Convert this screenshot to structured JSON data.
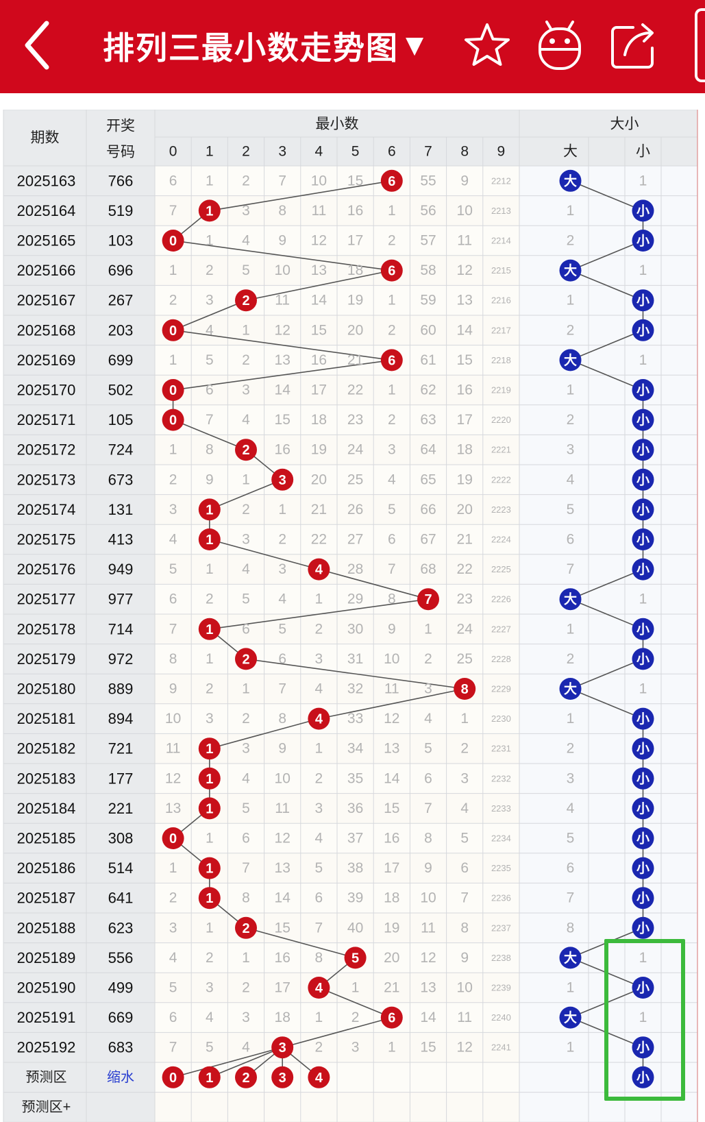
{
  "header": {
    "title": "排列三最小数走势图",
    "dropdown_icon": "triangle-down-icon",
    "back_icon": "chevron-left-icon",
    "star_icon": "star-icon",
    "robot_icon": "robot-icon",
    "share_icon": "share-icon"
  },
  "colors": {
    "brand_red": "#d0081c",
    "ball_red": "#c8101a",
    "ball_blue": "#1a27b0",
    "highlight_green": "#3cba3c"
  },
  "table": {
    "col_period": "期数",
    "col_award_line1": "开奖",
    "col_award_line2": "号码",
    "group_min": "最小数",
    "group_size": "大小",
    "digits": [
      "0",
      "1",
      "2",
      "3",
      "4",
      "5",
      "6",
      "7",
      "8",
      "9"
    ],
    "size_headers": [
      "大",
      "",
      "小"
    ],
    "rows": [
      {
        "period": "2025163",
        "num": "766",
        "cells": [
          "6",
          "1",
          "2",
          "7",
          "10",
          "15",
          "6",
          "55",
          "9",
          "2212"
        ],
        "size": [
          "大",
          "",
          "1"
        ]
      },
      {
        "period": "2025164",
        "num": "519",
        "cells": [
          "7",
          "1",
          "3",
          "8",
          "11",
          "16",
          "1",
          "56",
          "10",
          "2213"
        ],
        "size": [
          "1",
          "",
          "小"
        ]
      },
      {
        "period": "2025165",
        "num": "103",
        "cells": [
          "0",
          "1",
          "4",
          "9",
          "12",
          "17",
          "2",
          "57",
          "11",
          "2214"
        ],
        "size": [
          "2",
          "",
          "小"
        ]
      },
      {
        "period": "2025166",
        "num": "696",
        "cells": [
          "1",
          "2",
          "5",
          "10",
          "13",
          "18",
          "6",
          "58",
          "12",
          "2215"
        ],
        "size": [
          "大",
          "",
          "1"
        ]
      },
      {
        "period": "2025167",
        "num": "267",
        "cells": [
          "2",
          "3",
          "2",
          "11",
          "14",
          "19",
          "1",
          "59",
          "13",
          "2216"
        ],
        "size": [
          "1",
          "",
          "小"
        ]
      },
      {
        "period": "2025168",
        "num": "203",
        "cells": [
          "0",
          "4",
          "1",
          "12",
          "15",
          "20",
          "2",
          "60",
          "14",
          "2217"
        ],
        "size": [
          "2",
          "",
          "小"
        ]
      },
      {
        "period": "2025169",
        "num": "699",
        "cells": [
          "1",
          "5",
          "2",
          "13",
          "16",
          "21",
          "6",
          "61",
          "15",
          "2218"
        ],
        "size": [
          "大",
          "",
          "1"
        ]
      },
      {
        "period": "2025170",
        "num": "502",
        "cells": [
          "0",
          "6",
          "3",
          "14",
          "17",
          "22",
          "1",
          "62",
          "16",
          "2219"
        ],
        "size": [
          "1",
          "",
          "小"
        ]
      },
      {
        "period": "2025171",
        "num": "105",
        "cells": [
          "0",
          "7",
          "4",
          "15",
          "18",
          "23",
          "2",
          "63",
          "17",
          "2220"
        ],
        "size": [
          "2",
          "",
          "小"
        ]
      },
      {
        "period": "2025172",
        "num": "724",
        "cells": [
          "1",
          "8",
          "2",
          "16",
          "19",
          "24",
          "3",
          "64",
          "18",
          "2221"
        ],
        "size": [
          "3",
          "",
          "小"
        ]
      },
      {
        "period": "2025173",
        "num": "673",
        "cells": [
          "2",
          "9",
          "1",
          "3",
          "20",
          "25",
          "4",
          "65",
          "19",
          "2222"
        ],
        "size": [
          "4",
          "",
          "小"
        ]
      },
      {
        "period": "2025174",
        "num": "131",
        "cells": [
          "3",
          "1",
          "2",
          "1",
          "21",
          "26",
          "5",
          "66",
          "20",
          "2223"
        ],
        "size": [
          "5",
          "",
          "小"
        ]
      },
      {
        "period": "2025175",
        "num": "413",
        "cells": [
          "4",
          "1",
          "3",
          "2",
          "22",
          "27",
          "6",
          "67",
          "21",
          "2224"
        ],
        "size": [
          "6",
          "",
          "小"
        ]
      },
      {
        "period": "2025176",
        "num": "949",
        "cells": [
          "5",
          "1",
          "4",
          "3",
          "4",
          "28",
          "7",
          "68",
          "22",
          "2225"
        ],
        "size": [
          "7",
          "",
          "小"
        ]
      },
      {
        "period": "2025177",
        "num": "977",
        "cells": [
          "6",
          "2",
          "5",
          "4",
          "1",
          "29",
          "8",
          "7",
          "23",
          "2226"
        ],
        "size": [
          "大",
          "",
          "1"
        ]
      },
      {
        "period": "2025178",
        "num": "714",
        "cells": [
          "7",
          "1",
          "6",
          "5",
          "2",
          "30",
          "9",
          "1",
          "24",
          "2227"
        ],
        "size": [
          "1",
          "",
          "小"
        ]
      },
      {
        "period": "2025179",
        "num": "972",
        "cells": [
          "8",
          "1",
          "2",
          "6",
          "3",
          "31",
          "10",
          "2",
          "25",
          "2228"
        ],
        "size": [
          "2",
          "",
          "小"
        ]
      },
      {
        "period": "2025180",
        "num": "889",
        "cells": [
          "9",
          "2",
          "1",
          "7",
          "4",
          "32",
          "11",
          "3",
          "8",
          "2229"
        ],
        "size": [
          "大",
          "",
          "1"
        ]
      },
      {
        "period": "2025181",
        "num": "894",
        "cells": [
          "10",
          "3",
          "2",
          "8",
          "4",
          "33",
          "12",
          "4",
          "1",
          "2230"
        ],
        "size": [
          "1",
          "",
          "小"
        ]
      },
      {
        "period": "2025182",
        "num": "721",
        "cells": [
          "11",
          "1",
          "3",
          "9",
          "1",
          "34",
          "13",
          "5",
          "2",
          "2231"
        ],
        "size": [
          "2",
          "",
          "小"
        ]
      },
      {
        "period": "2025183",
        "num": "177",
        "cells": [
          "12",
          "1",
          "4",
          "10",
          "2",
          "35",
          "14",
          "6",
          "3",
          "2232"
        ],
        "size": [
          "3",
          "",
          "小"
        ]
      },
      {
        "period": "2025184",
        "num": "221",
        "cells": [
          "13",
          "1",
          "5",
          "11",
          "3",
          "36",
          "15",
          "7",
          "4",
          "2233"
        ],
        "size": [
          "4",
          "",
          "小"
        ]
      },
      {
        "period": "2025185",
        "num": "308",
        "cells": [
          "0",
          "1",
          "6",
          "12",
          "4",
          "37",
          "16",
          "8",
          "5",
          "2234"
        ],
        "size": [
          "5",
          "",
          "小"
        ]
      },
      {
        "period": "2025186",
        "num": "514",
        "cells": [
          "1",
          "1",
          "7",
          "13",
          "5",
          "38",
          "17",
          "9",
          "6",
          "2235"
        ],
        "size": [
          "6",
          "",
          "小"
        ]
      },
      {
        "period": "2025187",
        "num": "641",
        "cells": [
          "2",
          "1",
          "8",
          "14",
          "6",
          "39",
          "18",
          "10",
          "7",
          "2236"
        ],
        "size": [
          "7",
          "",
          "小"
        ]
      },
      {
        "period": "2025188",
        "num": "623",
        "cells": [
          "3",
          "1",
          "2",
          "15",
          "7",
          "40",
          "19",
          "11",
          "8",
          "2237"
        ],
        "size": [
          "8",
          "",
          "小"
        ]
      },
      {
        "period": "2025189",
        "num": "556",
        "cells": [
          "4",
          "2",
          "1",
          "16",
          "8",
          "5",
          "20",
          "12",
          "9",
          "2238"
        ],
        "size": [
          "大",
          "",
          "1"
        ]
      },
      {
        "period": "2025190",
        "num": "499",
        "cells": [
          "5",
          "3",
          "2",
          "17",
          "4",
          "1",
          "21",
          "13",
          "10",
          "2239"
        ],
        "size": [
          "1",
          "",
          "小"
        ]
      },
      {
        "period": "2025191",
        "num": "669",
        "cells": [
          "6",
          "4",
          "3",
          "18",
          "1",
          "2",
          "6",
          "14",
          "11",
          "2240"
        ],
        "size": [
          "大",
          "",
          "1"
        ]
      },
      {
        "period": "2025192",
        "num": "683",
        "cells": [
          "7",
          "5",
          "4",
          "3",
          "2",
          "3",
          "1",
          "15",
          "12",
          "2241"
        ],
        "size": [
          "1",
          "",
          "小"
        ]
      }
    ],
    "hits": [
      6,
      1,
      0,
      6,
      2,
      0,
      6,
      0,
      0,
      2,
      3,
      1,
      1,
      4,
      7,
      1,
      2,
      8,
      4,
      1,
      1,
      1,
      0,
      1,
      1,
      2,
      5,
      4,
      6,
      3
    ],
    "size_hits": [
      0,
      2,
      2,
      0,
      2,
      2,
      0,
      2,
      2,
      2,
      2,
      2,
      2,
      2,
      0,
      2,
      2,
      0,
      2,
      2,
      2,
      2,
      2,
      2,
      2,
      2,
      0,
      2,
      0,
      2
    ],
    "predict_label": "预测区",
    "predict_link": "缩水",
    "predict_balls": [
      "0",
      "1",
      "2",
      "3",
      "4"
    ],
    "predict_size": "小",
    "predict_plus_label": "预测区+"
  }
}
